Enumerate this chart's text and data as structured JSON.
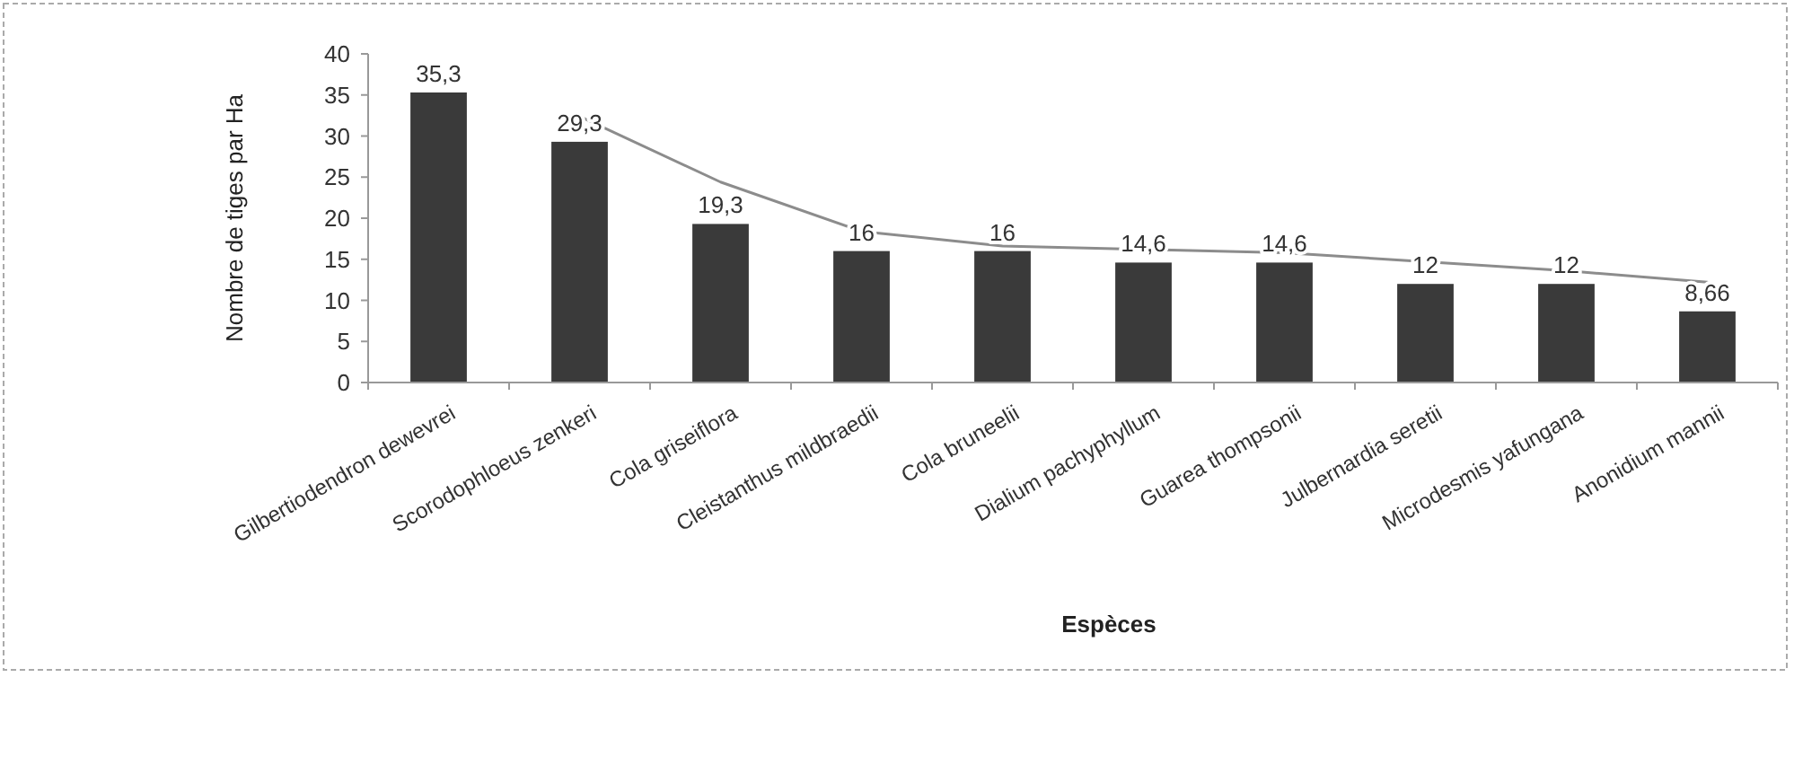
{
  "chart_data": {
    "type": "bar",
    "xlabel": "Espèces",
    "ylabel": "Nombre de tiges par Ha",
    "categories": [
      "Gilbertiodendron dewevrei",
      "Scorodophloeus zenkeri",
      "Cola griseiflora",
      "Cleistanthus mildbraedii",
      "Cola bruneelii",
      "Dialium pachyphyllum",
      "Guarea thompsonii",
      "Julbernardia seretii",
      "Microdesmis yafungana",
      "Anonidium mannii"
    ],
    "series": [
      {
        "color": "#3a3a3a",
        "values": [
          35.3,
          29.3,
          19.3,
          16,
          16,
          14.6,
          14.6,
          12,
          12,
          8.66
        ],
        "value_labels": [
          "35,3",
          "29,3",
          "19,3",
          "16",
          "16",
          "14,6",
          "14,6",
          "12",
          "12",
          "8,66"
        ]
      },
      {
        "type": "line",
        "color": "#8c8c8c",
        "values": [
          null,
          32.4,
          24.4,
          18.4,
          16.6,
          16.2,
          15.8,
          14.7,
          13.6,
          12.2
        ]
      }
    ],
    "ylim": [
      0,
      40
    ],
    "yticks": [
      0,
      5,
      10,
      15,
      20,
      25,
      30,
      35,
      40
    ],
    "grid": false,
    "marker": "none",
    "line_style": "solid"
  }
}
